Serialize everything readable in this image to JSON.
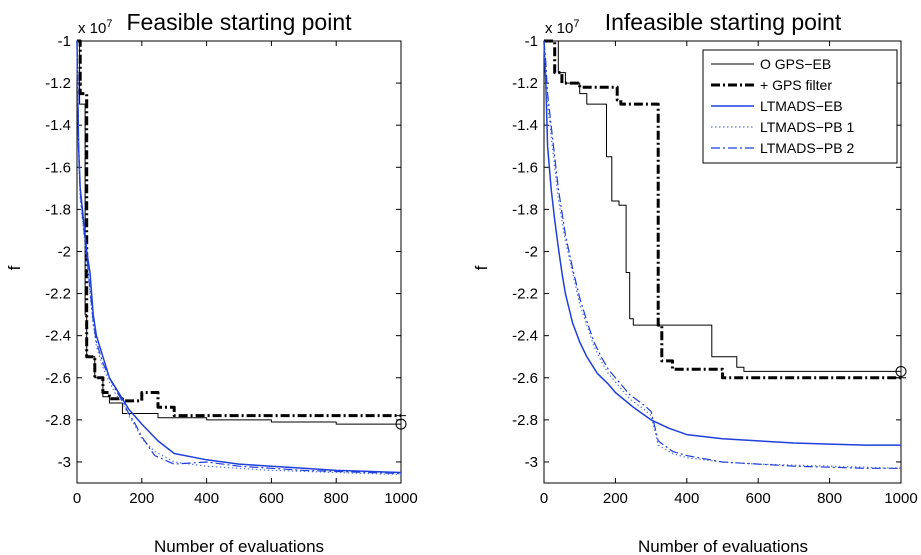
{
  "chart_data": [
    {
      "type": "line",
      "title": "Feasible starting point",
      "xlabel": "Number of evaluations",
      "ylabel": "f",
      "y_multiplier": "x 10",
      "y_multiplier_exp": "7",
      "xlim": [
        0,
        1000
      ],
      "ylim": [
        -3.1,
        -1.0
      ],
      "xticks": [
        0,
        200,
        400,
        600,
        800,
        1000
      ],
      "xtick_labels": [
        "0",
        "200",
        "400",
        "600",
        "800",
        "1000"
      ],
      "yticks": [
        -1,
        -1.2,
        -1.4,
        -1.6,
        -1.8,
        -2,
        -2.2,
        -2.4,
        -2.6,
        -2.8,
        -3
      ],
      "ytick_labels": [
        "-1",
        "-1.2",
        "-1.4",
        "-1.6",
        "-1.8",
        "-2",
        "-2.2",
        "-2.4",
        "-2.6",
        "-2.8",
        "-3"
      ],
      "grid": false,
      "series": [
        {
          "name": "GPS−EB",
          "color": "#000000",
          "style": "solid",
          "width": 1,
          "marker": "circle",
          "x": [
            0,
            8,
            8,
            25,
            25,
            30,
            30,
            55,
            55,
            80,
            80,
            100,
            100,
            140,
            140,
            250,
            250,
            400,
            400,
            600,
            600,
            800,
            800,
            1000
          ],
          "y": [
            -1.0,
            -1.0,
            -1.3,
            -1.3,
            -2.3,
            -2.3,
            -2.5,
            -2.5,
            -2.6,
            -2.6,
            -2.69,
            -2.69,
            -2.72,
            -2.72,
            -2.77,
            -2.77,
            -2.79,
            -2.79,
            -2.8,
            -2.8,
            -2.81,
            -2.81,
            -2.82,
            -2.82
          ]
        },
        {
          "name": "GPS filter",
          "color": "#000000",
          "style": "dashdot",
          "width": 3,
          "marker": "plus",
          "x": [
            0,
            10,
            10,
            30,
            30,
            55,
            55,
            80,
            80,
            100,
            100,
            140,
            140,
            200,
            200,
            250,
            250,
            300,
            300,
            1000
          ],
          "y": [
            -1.0,
            -1.0,
            -1.25,
            -1.25,
            -2.5,
            -2.5,
            -2.6,
            -2.6,
            -2.67,
            -2.67,
            -2.7,
            -2.7,
            -2.71,
            -2.71,
            -2.67,
            -2.67,
            -2.74,
            -2.74,
            -2.78,
            -2.78
          ]
        },
        {
          "name": "LTMADS−EB",
          "color": "#1f3fdc",
          "style": "solid",
          "width": 1.5,
          "marker": "",
          "x": [
            0,
            5,
            10,
            20,
            30,
            40,
            50,
            60,
            80,
            100,
            120,
            140,
            160,
            200,
            250,
            300,
            400,
            500,
            600,
            700,
            800,
            900,
            1000
          ],
          "y": [
            -1.0,
            -1.5,
            -1.7,
            -1.85,
            -2.0,
            -2.1,
            -2.3,
            -2.4,
            -2.5,
            -2.6,
            -2.65,
            -2.7,
            -2.75,
            -2.82,
            -2.9,
            -2.96,
            -2.99,
            -3.01,
            -3.02,
            -3.03,
            -3.04,
            -3.045,
            -3.05
          ]
        },
        {
          "name": "LTMADS−PB 1",
          "color": "#5a78e6",
          "style": "dotted",
          "width": 1.2,
          "marker": "",
          "x": [
            0,
            5,
            10,
            20,
            30,
            40,
            50,
            60,
            80,
            100,
            120,
            140,
            160,
            180,
            200,
            240,
            300,
            400,
            500,
            600,
            700,
            800,
            900,
            1000
          ],
          "y": [
            -1.0,
            -1.55,
            -1.75,
            -1.9,
            -2.05,
            -2.2,
            -2.35,
            -2.45,
            -2.55,
            -2.62,
            -2.68,
            -2.72,
            -2.78,
            -2.83,
            -2.89,
            -2.95,
            -3.0,
            -3.02,
            -3.03,
            -3.04,
            -3.045,
            -3.05,
            -3.055,
            -3.06
          ]
        },
        {
          "name": "LTMADS−PB 2",
          "color": "#1f3fdc",
          "style": "dashdot",
          "width": 1.2,
          "marker": "",
          "x": [
            0,
            5,
            10,
            20,
            30,
            40,
            50,
            60,
            80,
            100,
            120,
            140,
            160,
            180,
            200,
            240,
            300,
            400,
            500,
            600,
            700,
            800,
            900,
            1000
          ],
          "y": [
            -1.0,
            -1.5,
            -1.72,
            -1.88,
            -2.02,
            -2.18,
            -2.33,
            -2.43,
            -2.53,
            -2.6,
            -2.66,
            -2.71,
            -2.77,
            -2.82,
            -2.88,
            -2.97,
            -3.01,
            -3.0,
            -3.02,
            -3.03,
            -3.04,
            -3.045,
            -3.05,
            -3.055
          ]
        }
      ]
    },
    {
      "type": "line",
      "title": "Infeasible starting point",
      "xlabel": "Number of evaluations",
      "ylabel": "f",
      "y_multiplier": "x 10",
      "y_multiplier_exp": "7",
      "xlim": [
        0,
        1000
      ],
      "ylim": [
        -3.1,
        -1.0
      ],
      "xticks": [
        0,
        200,
        400,
        600,
        800,
        1000
      ],
      "xtick_labels": [
        "0",
        "200",
        "400",
        "600",
        "800",
        "1000"
      ],
      "yticks": [
        -1,
        -1.2,
        -1.4,
        -1.6,
        -1.8,
        -2,
        -2.2,
        -2.4,
        -2.6,
        -2.8,
        -3
      ],
      "ytick_labels": [
        "-1",
        "-1.2",
        "-1.4",
        "-1.6",
        "-1.8",
        "-2",
        "-2.2",
        "-2.4",
        "-2.6",
        "-2.8",
        "-3"
      ],
      "grid": false,
      "legend_position": "top-right",
      "legend_entries": [
        {
          "marker_text": "O",
          "label": "GPS−EB"
        },
        {
          "marker_text": "+",
          "label": "GPS filter"
        },
        {
          "marker_text": "",
          "label": "LTMADS−EB"
        },
        {
          "marker_text": "",
          "label": "LTMADS−PB 1"
        },
        {
          "marker_text": "",
          "label": "LTMADS−PB 2"
        }
      ],
      "series": [
        {
          "name": "GPS−EB",
          "color": "#000000",
          "style": "solid",
          "width": 1,
          "marker": "circle",
          "x": [
            0,
            40,
            40,
            60,
            60,
            100,
            100,
            120,
            120,
            175,
            175,
            190,
            190,
            210,
            210,
            230,
            230,
            240,
            240,
            250,
            250,
            470,
            470,
            540,
            540,
            560,
            560,
            1000
          ],
          "y": [
            -1.0,
            -1.0,
            -1.15,
            -1.15,
            -1.2,
            -1.2,
            -1.25,
            -1.25,
            -1.3,
            -1.3,
            -1.55,
            -1.55,
            -1.76,
            -1.76,
            -1.78,
            -1.78,
            -2.1,
            -2.1,
            -2.32,
            -2.32,
            -2.35,
            -2.35,
            -2.5,
            -2.5,
            -2.55,
            -2.55,
            -2.57,
            -2.57
          ]
        },
        {
          "name": "GPS filter",
          "color": "#000000",
          "style": "dashdot",
          "width": 3,
          "marker": "plus",
          "x": [
            0,
            30,
            30,
            50,
            50,
            100,
            100,
            205,
            205,
            215,
            215,
            320,
            320,
            330,
            330,
            360,
            360,
            500,
            500,
            1000
          ],
          "y": [
            -1.0,
            -1.0,
            -1.15,
            -1.15,
            -1.2,
            -1.2,
            -1.22,
            -1.22,
            -1.28,
            -1.28,
            -1.3,
            -1.3,
            -2.35,
            -2.35,
            -2.52,
            -2.52,
            -2.56,
            -2.56,
            -2.6,
            -2.6
          ]
        },
        {
          "name": "LTMADS−EB",
          "color": "#1f3fdc",
          "style": "solid",
          "width": 1.5,
          "marker": "",
          "x": [
            0,
            5,
            10,
            20,
            30,
            40,
            50,
            60,
            80,
            100,
            120,
            150,
            180,
            200,
            250,
            300,
            350,
            400,
            500,
            600,
            700,
            800,
            900,
            1000
          ],
          "y": [
            -1.0,
            -1.2,
            -1.5,
            -1.7,
            -1.85,
            -1.98,
            -2.1,
            -2.2,
            -2.34,
            -2.43,
            -2.5,
            -2.58,
            -2.63,
            -2.67,
            -2.74,
            -2.8,
            -2.84,
            -2.87,
            -2.89,
            -2.9,
            -2.91,
            -2.915,
            -2.92,
            -2.92
          ]
        },
        {
          "name": "LTMADS−PB 1",
          "color": "#5a78e6",
          "style": "dotted",
          "width": 1.2,
          "marker": "",
          "x": [
            0,
            5,
            10,
            20,
            30,
            40,
            60,
            80,
            100,
            120,
            140,
            160,
            180,
            200,
            240,
            280,
            300,
            320,
            360,
            400,
            500,
            600,
            700,
            800,
            900,
            1000
          ],
          "y": [
            -1.0,
            -1.15,
            -1.3,
            -1.45,
            -1.6,
            -1.75,
            -1.95,
            -2.1,
            -2.25,
            -2.35,
            -2.45,
            -2.52,
            -2.58,
            -2.62,
            -2.7,
            -2.75,
            -2.78,
            -2.92,
            -2.96,
            -2.98,
            -3.0,
            -3.01,
            -3.015,
            -3.02,
            -3.025,
            -3.03
          ]
        },
        {
          "name": "LTMADS−PB 2",
          "color": "#1f3fdc",
          "style": "dashdot",
          "width": 1.2,
          "marker": "",
          "x": [
            0,
            5,
            10,
            20,
            30,
            40,
            60,
            80,
            100,
            120,
            140,
            160,
            180,
            200,
            240,
            280,
            300,
            320,
            360,
            400,
            500,
            600,
            700,
            800,
            900,
            1000
          ],
          "y": [
            -1.0,
            -1.1,
            -1.25,
            -1.4,
            -1.55,
            -1.7,
            -1.92,
            -2.08,
            -2.22,
            -2.33,
            -2.43,
            -2.5,
            -2.56,
            -2.6,
            -2.68,
            -2.73,
            -2.76,
            -2.9,
            -2.95,
            -2.97,
            -3.0,
            -3.01,
            -3.02,
            -3.025,
            -3.03,
            -3.03
          ]
        }
      ]
    }
  ]
}
